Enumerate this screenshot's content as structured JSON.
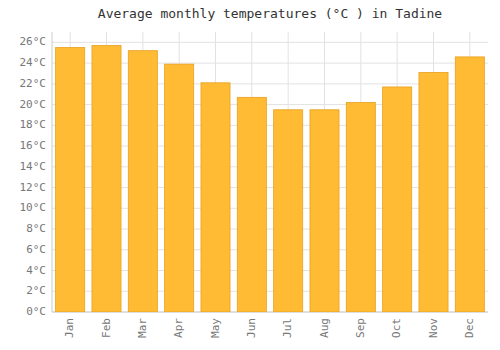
{
  "chart_data": {
    "type": "bar",
    "title": "Average monthly temperatures (°C ) in Tadine",
    "categories": [
      "Jan",
      "Feb",
      "Mar",
      "Apr",
      "May",
      "Jun",
      "Jul",
      "Aug",
      "Sep",
      "Oct",
      "Nov",
      "Dec"
    ],
    "values": [
      25.5,
      25.7,
      25.2,
      23.9,
      22.1,
      20.7,
      19.5,
      19.5,
      20.2,
      21.7,
      23.1,
      24.6
    ],
    "color": "#FFBB33",
    "ylim": [
      0,
      27
    ],
    "yticks": [
      {
        "value": 0,
        "label": "0°C"
      },
      {
        "value": 2,
        "label": "2°C"
      },
      {
        "value": 4,
        "label": "4°C"
      },
      {
        "value": 6,
        "label": "6°C"
      },
      {
        "value": 8,
        "label": "8°C"
      },
      {
        "value": 10,
        "label": "10°C"
      },
      {
        "value": 12,
        "label": "12°C"
      },
      {
        "value": 14,
        "label": "14°C"
      },
      {
        "value": 16,
        "label": "16°C"
      },
      {
        "value": 18,
        "label": "18°C"
      },
      {
        "value": 20,
        "label": "20°C"
      },
      {
        "value": 22,
        "label": "22°C"
      },
      {
        "value": 24,
        "label": "24°C"
      },
      {
        "value": 26,
        "label": "26°C"
      }
    ],
    "grid": true
  }
}
